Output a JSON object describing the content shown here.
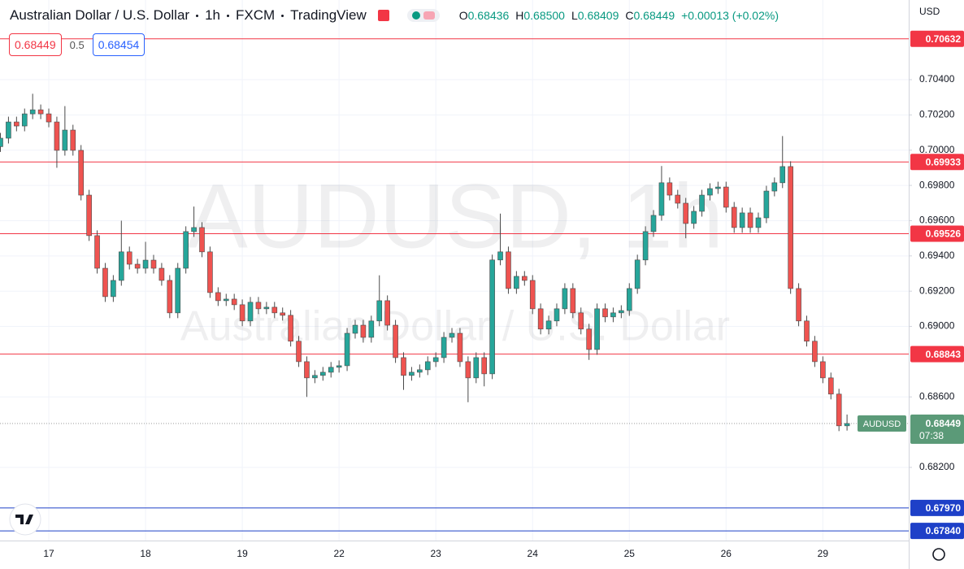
{
  "chart_data": {
    "type": "candlestick",
    "title": "Australian Dollar / U.S. Dollar",
    "interval": "1h",
    "source": "FXCM",
    "platform": "TradingView",
    "currency": "USD",
    "ohlc": [
      {
        "prefix": "O",
        "value": "0.68436"
      },
      {
        "prefix": "H",
        "value": "0.68500"
      },
      {
        "prefix": "L",
        "value": "0.68409"
      },
      {
        "prefix": "C",
        "value": "0.68449"
      }
    ],
    "change": "+0.00013 (+0.02%)",
    "order": {
      "sell": "0.68449",
      "spread": "0.5",
      "buy": "0.68454"
    },
    "watermark": {
      "symbol": "AUDUSD, 1h",
      "name": "Australian Dollar / U.S. Dollar"
    },
    "up_color": "#26a69a",
    "down_color": "#ef5350",
    "grid": true,
    "categories": [
      null,
      null,
      null,
      null,
      null,
      null,
      "17",
      null,
      null,
      null,
      null,
      null,
      null,
      null,
      null,
      null,
      null,
      null,
      "18",
      null,
      null,
      null,
      null,
      null,
      null,
      null,
      null,
      null,
      null,
      null,
      "19",
      null,
      null,
      null,
      null,
      null,
      null,
      null,
      null,
      null,
      null,
      null,
      "22",
      null,
      null,
      null,
      null,
      null,
      null,
      null,
      null,
      null,
      null,
      null,
      "23",
      null,
      null,
      null,
      null,
      null,
      null,
      null,
      null,
      null,
      null,
      null,
      "24",
      null,
      null,
      null,
      null,
      null,
      null,
      null,
      null,
      null,
      null,
      null,
      "25",
      null,
      null,
      null,
      null,
      null,
      null,
      null,
      null,
      null,
      null,
      null,
      "26",
      null,
      null,
      null,
      null,
      null,
      null,
      null,
      null,
      null,
      null,
      null,
      "29",
      null,
      null,
      null
    ],
    "open": [
      0.7002,
      0.70068,
      0.7016,
      0.70137,
      0.70206,
      0.70229,
      0.70206,
      0.7016,
      0.69999,
      0.70114,
      0.69999,
      0.69745,
      0.69515,
      0.6933,
      0.69169,
      0.69261,
      0.69423,
      0.69353,
      0.6933,
      0.69376,
      0.6933,
      0.69261,
      0.69077,
      0.6933,
      0.69538,
      0.69561,
      0.69423,
      0.69192,
      0.69146,
      0.69155,
      0.69123,
      0.69031,
      0.69137,
      0.691,
      0.69109,
      0.69077,
      0.69063,
      0.68916,
      0.688,
      0.68708,
      0.68722,
      0.6874,
      0.68768,
      0.68777,
      0.68961,
      0.69007,
      0.68938,
      0.69031,
      0.69146,
      0.69007,
      0.68823,
      0.68722,
      0.6874,
      0.68754,
      0.688,
      0.68823,
      0.68938,
      0.68961,
      0.688,
      0.68708,
      0.68823,
      0.68731,
      0.69377,
      0.69423,
      0.69215,
      0.69284,
      0.69261,
      0.691,
      0.68985,
      0.69031,
      0.691,
      0.69215,
      0.69077,
      0.68985,
      0.68869,
      0.691,
      0.69054,
      0.69077,
      0.6909,
      0.69215,
      0.69377,
      0.69538,
      0.6963,
      0.69815,
      0.69745,
      0.69699,
      0.69584,
      0.69653,
      0.69745,
      0.69782,
      0.69791,
      0.69676,
      0.69561,
      0.69644,
      0.69561,
      0.69616,
      0.69768,
      0.69815,
      0.69907,
      0.69215,
      0.69031,
      0.68916,
      0.688,
      0.68708,
      0.68616,
      0.68436
    ],
    "high": [
      0.70098,
      0.7019,
      0.7019,
      0.70236,
      0.7032,
      0.70259,
      0.70236,
      0.7019,
      0.7025,
      0.70144,
      0.70029,
      0.69775,
      0.69545,
      0.6936,
      0.69291,
      0.696,
      0.69453,
      0.69383,
      0.6948,
      0.69406,
      0.6936,
      0.69291,
      0.6936,
      0.69568,
      0.6968,
      0.69591,
      0.69453,
      0.69222,
      0.69185,
      0.69185,
      0.69153,
      0.69167,
      0.69167,
      0.69139,
      0.69139,
      0.69107,
      0.69093,
      0.68946,
      0.6883,
      0.68752,
      0.6877,
      0.68798,
      0.68807,
      0.68991,
      0.69037,
      0.69037,
      0.69061,
      0.6929,
      0.69176,
      0.69037,
      0.68853,
      0.6877,
      0.68784,
      0.6883,
      0.68853,
      0.68968,
      0.68991,
      0.68991,
      0.6883,
      0.68853,
      0.68853,
      0.69407,
      0.6964,
      0.69453,
      0.69314,
      0.69314,
      0.69291,
      0.6913,
      0.69061,
      0.6913,
      0.69245,
      0.69245,
      0.69107,
      0.69015,
      0.6913,
      0.6913,
      0.69107,
      0.6912,
      0.69245,
      0.69407,
      0.69568,
      0.6966,
      0.6991,
      0.69845,
      0.69775,
      0.69729,
      0.69683,
      0.69775,
      0.69812,
      0.69821,
      0.69821,
      0.69706,
      0.69674,
      0.69674,
      0.69646,
      0.69798,
      0.69845,
      0.7008,
      0.69937,
      0.69245,
      0.69061,
      0.68946,
      0.6883,
      0.68738,
      0.68646,
      0.685
    ],
    "low": [
      0.6999,
      0.70038,
      0.70107,
      0.70107,
      0.70176,
      0.70176,
      0.7013,
      0.699,
      0.69969,
      0.69969,
      0.69715,
      0.69485,
      0.693,
      0.69139,
      0.69139,
      0.69231,
      0.69323,
      0.693,
      0.693,
      0.693,
      0.69231,
      0.69047,
      0.69047,
      0.693,
      0.69508,
      0.69393,
      0.69162,
      0.69116,
      0.69116,
      0.69093,
      0.69001,
      0.69001,
      0.6907,
      0.6907,
      0.69047,
      0.69033,
      0.68886,
      0.6877,
      0.686,
      0.68678,
      0.68692,
      0.6871,
      0.68738,
      0.68747,
      0.68931,
      0.68908,
      0.68908,
      0.69001,
      0.68977,
      0.68793,
      0.6864,
      0.68692,
      0.6871,
      0.68724,
      0.6877,
      0.68793,
      0.68908,
      0.6877,
      0.6857,
      0.68678,
      0.6866,
      0.68701,
      0.69347,
      0.69185,
      0.69185,
      0.69231,
      0.6907,
      0.68955,
      0.68955,
      0.69001,
      0.6907,
      0.69047,
      0.68955,
      0.6881,
      0.68839,
      0.69024,
      0.69024,
      0.69047,
      0.6906,
      0.69185,
      0.69347,
      0.69508,
      0.696,
      0.69715,
      0.69669,
      0.695,
      0.69554,
      0.69623,
      0.69715,
      0.69752,
      0.69646,
      0.69531,
      0.69531,
      0.69531,
      0.69531,
      0.69586,
      0.69738,
      0.69785,
      0.69185,
      0.69001,
      0.68886,
      0.6877,
      0.68678,
      0.68586,
      0.68406,
      0.68409
    ],
    "close": [
      0.70068,
      0.7016,
      0.70137,
      0.70206,
      0.70229,
      0.70206,
      0.7016,
      0.69999,
      0.70114,
      0.69999,
      0.69745,
      0.69515,
      0.6933,
      0.69169,
      0.69261,
      0.69423,
      0.69353,
      0.6933,
      0.69376,
      0.6933,
      0.69261,
      0.69077,
      0.6933,
      0.69538,
      0.69561,
      0.69423,
      0.69192,
      0.69146,
      0.69155,
      0.69123,
      0.69031,
      0.69137,
      0.691,
      0.69109,
      0.69077,
      0.69063,
      0.68916,
      0.688,
      0.68708,
      0.68722,
      0.6874,
      0.68768,
      0.68777,
      0.68961,
      0.69007,
      0.68938,
      0.69031,
      0.69146,
      0.69007,
      0.68823,
      0.68722,
      0.6874,
      0.68754,
      0.688,
      0.68823,
      0.68938,
      0.68961,
      0.688,
      0.68708,
      0.68823,
      0.68731,
      0.69377,
      0.69423,
      0.69215,
      0.69284,
      0.69261,
      0.691,
      0.68985,
      0.69031,
      0.691,
      0.69215,
      0.69077,
      0.68985,
      0.68869,
      0.691,
      0.69054,
      0.69077,
      0.6909,
      0.69215,
      0.69377,
      0.69538,
      0.6963,
      0.69815,
      0.69745,
      0.69699,
      0.69584,
      0.69653,
      0.69745,
      0.69782,
      0.69791,
      0.69676,
      0.69561,
      0.69644,
      0.69561,
      0.69616,
      0.69768,
      0.69815,
      0.69907,
      0.69215,
      0.69031,
      0.68916,
      0.688,
      0.68708,
      0.68616,
      0.68436,
      0.68449
    ],
    "ylim": [
      0.67785,
      0.70852
    ],
    "yticks": [
      {
        "value": 0.704,
        "label": "0.70400"
      },
      {
        "value": 0.702,
        "label": "0.70200"
      },
      {
        "value": 0.7,
        "label": "0.70000"
      },
      {
        "value": 0.698,
        "label": "0.69800"
      },
      {
        "value": 0.696,
        "label": "0.69600"
      },
      {
        "value": 0.694,
        "label": "0.69400"
      },
      {
        "value": 0.692,
        "label": "0.69200"
      },
      {
        "value": 0.69,
        "label": "0.69000"
      },
      {
        "value": 0.686,
        "label": "0.68600"
      },
      {
        "value": 0.682,
        "label": "0.68200"
      }
    ],
    "price_lines": [
      {
        "value": 0.70632,
        "label": "0.70632",
        "color": "#f23645"
      },
      {
        "value": 0.69933,
        "label": "0.69933",
        "color": "#f23645"
      },
      {
        "value": 0.69526,
        "label": "0.69526",
        "color": "#f23645"
      },
      {
        "value": 0.68843,
        "label": "0.68843",
        "color": "#f23645"
      },
      {
        "value": 0.6797,
        "label": "0.67970",
        "color": "#1e40c8"
      },
      {
        "value": 0.6784,
        "label": "0.67840",
        "color": "#1e40c8"
      }
    ],
    "last_price": {
      "value": 0.68449,
      "label": "0.68449",
      "symbol": "AUDUSD",
      "countdown": "07:38",
      "color": "#5b9a78"
    }
  }
}
